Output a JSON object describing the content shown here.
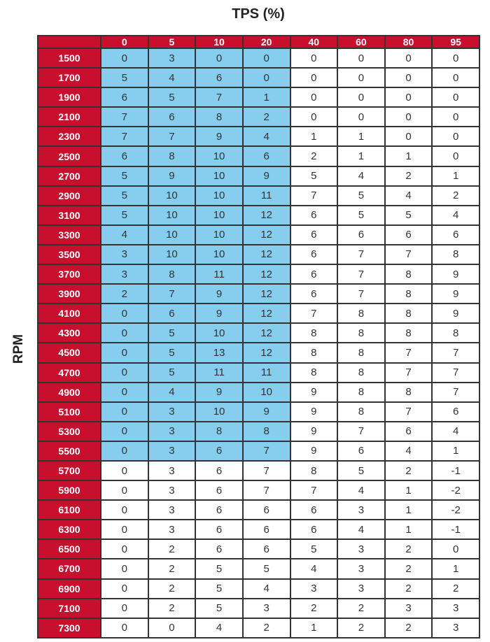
{
  "chart_data": {
    "type": "table",
    "title": "TPS (%)",
    "ylabel": "RPM",
    "columns": [
      "0",
      "5",
      "10",
      "20",
      "40",
      "60",
      "80",
      "95"
    ],
    "rows": [
      "1500",
      "1700",
      "1900",
      "2100",
      "2300",
      "2500",
      "2700",
      "2900",
      "3100",
      "3300",
      "3500",
      "3700",
      "3900",
      "4100",
      "4300",
      "4500",
      "4700",
      "4900",
      "5100",
      "5300",
      "5500",
      "5700",
      "5900",
      "6100",
      "6300",
      "6500",
      "6700",
      "6900",
      "7100",
      "7300"
    ],
    "values": [
      [
        0,
        3,
        0,
        0,
        0,
        0,
        0,
        0
      ],
      [
        5,
        4,
        6,
        0,
        0,
        0,
        0,
        0
      ],
      [
        6,
        5,
        7,
        1,
        0,
        0,
        0,
        0
      ],
      [
        7,
        6,
        8,
        2,
        0,
        0,
        0,
        0
      ],
      [
        7,
        7,
        9,
        4,
        1,
        1,
        0,
        0
      ],
      [
        6,
        8,
        10,
        6,
        2,
        1,
        1,
        0
      ],
      [
        5,
        9,
        10,
        9,
        5,
        4,
        2,
        1
      ],
      [
        5,
        10,
        10,
        11,
        7,
        5,
        4,
        2
      ],
      [
        5,
        10,
        10,
        12,
        6,
        5,
        5,
        4
      ],
      [
        4,
        10,
        10,
        12,
        6,
        6,
        6,
        6
      ],
      [
        3,
        10,
        10,
        12,
        6,
        7,
        7,
        8
      ],
      [
        3,
        8,
        11,
        12,
        6,
        7,
        8,
        9
      ],
      [
        2,
        7,
        9,
        12,
        6,
        7,
        8,
        9
      ],
      [
        0,
        6,
        9,
        12,
        7,
        8,
        8,
        9
      ],
      [
        0,
        5,
        10,
        12,
        8,
        8,
        8,
        8
      ],
      [
        0,
        5,
        13,
        12,
        8,
        8,
        7,
        7
      ],
      [
        0,
        5,
        11,
        11,
        8,
        8,
        7,
        7
      ],
      [
        0,
        4,
        9,
        10,
        9,
        8,
        8,
        7
      ],
      [
        0,
        3,
        10,
        9,
        9,
        8,
        7,
        6
      ],
      [
        0,
        3,
        8,
        8,
        9,
        7,
        6,
        4
      ],
      [
        0,
        3,
        6,
        7,
        9,
        6,
        4,
        1
      ],
      [
        0,
        3,
        6,
        7,
        8,
        5,
        2,
        -1
      ],
      [
        0,
        3,
        6,
        7,
        7,
        4,
        1,
        -2
      ],
      [
        0,
        3,
        6,
        6,
        6,
        3,
        1,
        -2
      ],
      [
        0,
        3,
        6,
        6,
        6,
        4,
        1,
        -1
      ],
      [
        0,
        2,
        6,
        6,
        5,
        3,
        2,
        0
      ],
      [
        0,
        2,
        5,
        5,
        4,
        3,
        2,
        1
      ],
      [
        0,
        2,
        5,
        4,
        3,
        3,
        2,
        2
      ],
      [
        0,
        2,
        5,
        3,
        2,
        2,
        3,
        3
      ],
      [
        0,
        0,
        4,
        2,
        1,
        2,
        2,
        3
      ]
    ],
    "highlight": {
      "rows": [
        "1500",
        "5500"
      ],
      "columns": [
        "0",
        "20"
      ],
      "color": "#86cdee"
    },
    "header_color": "#c8102e"
  }
}
